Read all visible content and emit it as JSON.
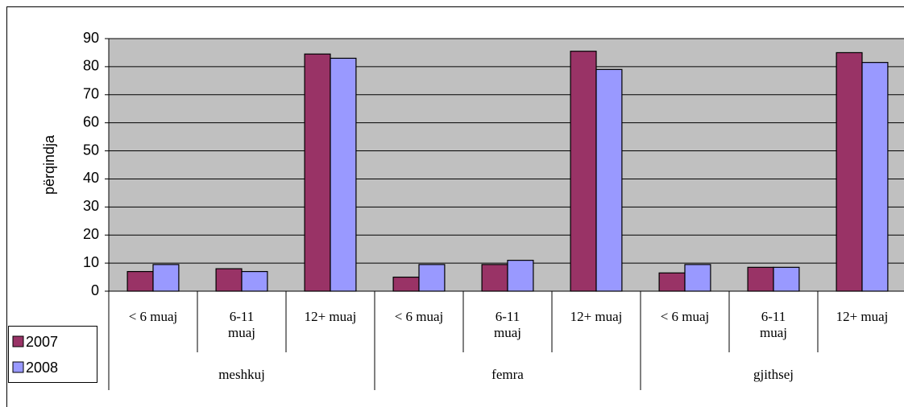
{
  "chart_data": {
    "type": "bar",
    "ylabel": "përqindja",
    "categories": [
      "< 6 muaj",
      "6-11\nmuaj",
      "12+ muaj",
      "< 6 muaj",
      "6-11\nmuaj",
      "12+ muaj",
      "< 6 muaj",
      "6-11\nmuaj",
      "12+ muaj"
    ],
    "groups": [
      "meshkuj",
      "femra",
      "gjithsej"
    ],
    "series": [
      {
        "name": "2007",
        "color": "#993366",
        "values": [
          7,
          8,
          84.5,
          5,
          9.5,
          85.5,
          6.5,
          8.5,
          85
        ]
      },
      {
        "name": "2008",
        "color": "#9999ff",
        "values": [
          9.5,
          7,
          83,
          9.5,
          11,
          79,
          9.5,
          8.5,
          81.5
        ]
      }
    ],
    "ylim": [
      0,
      90
    ],
    "yticks": [
      0,
      10,
      20,
      30,
      40,
      50,
      60,
      70,
      80,
      90
    ],
    "grid": true,
    "legend": "bottom-left"
  }
}
